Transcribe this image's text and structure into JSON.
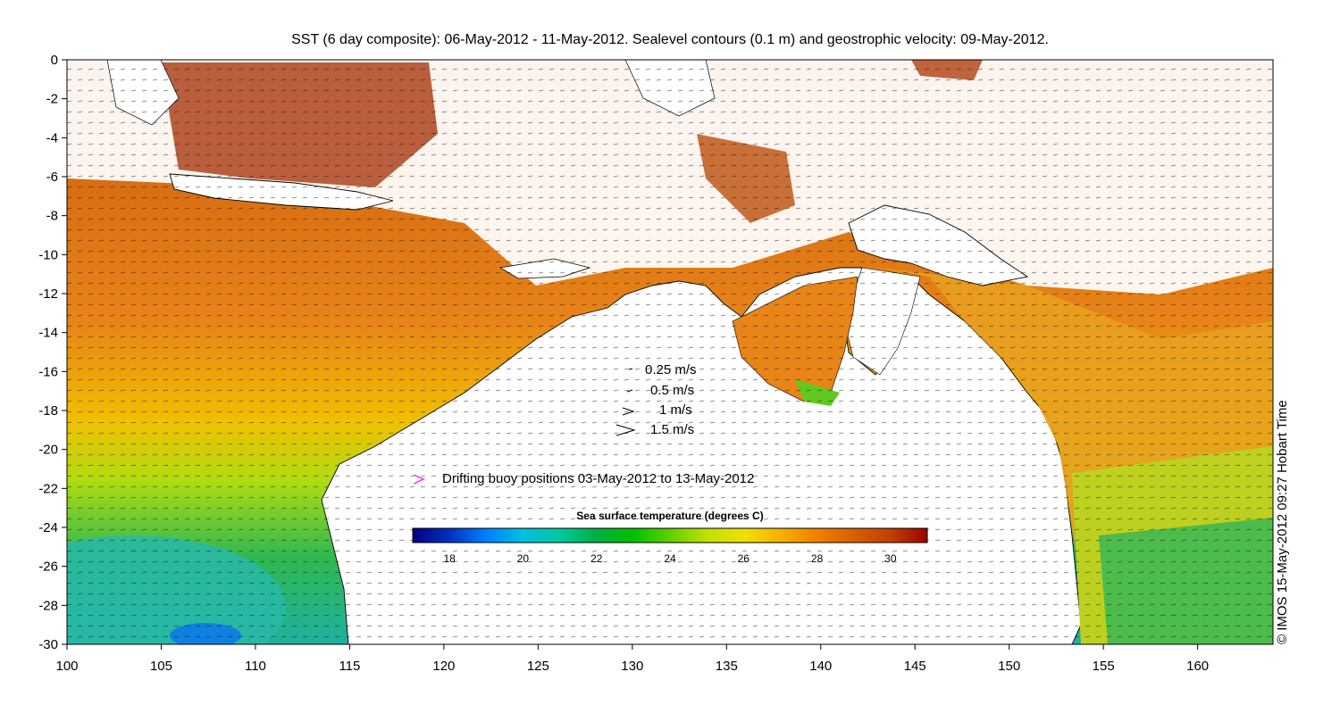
{
  "title": "SST (6 day composite): 06-May-2012 - 11-May-2012. Sealevel contours (0.1 m) and geostrophic velocity: 09-May-2012.",
  "credit": "© IMOS 15-May-2012 09:27 Hobart Time",
  "x_axis": {
    "ticks": [
      "100",
      "105",
      "110",
      "115",
      "120",
      "125",
      "130",
      "135",
      "140",
      "145",
      "150",
      "155",
      "160"
    ],
    "range": [
      100,
      164
    ]
  },
  "y_axis": {
    "ticks": [
      "0",
      "-2",
      "-4",
      "-6",
      "-8",
      "-10",
      "-12",
      "-14",
      "-16",
      "-18",
      "-20",
      "-22",
      "-24",
      "-26",
      "-28",
      "-30"
    ],
    "range": [
      -30,
      0
    ]
  },
  "velocity_legend": [
    {
      "label": "0.25 m/s",
      "speed": 0.25
    },
    {
      "label": "0.5 m/s",
      "speed": 0.5
    },
    {
      "label": "1 m/s",
      "speed": 1
    },
    {
      "label": "1.5 m/s",
      "speed": 1.5
    }
  ],
  "buoy_legend": {
    "label": "Drifting buoy positions 03-May-2012 to 13-May-2012",
    "color": "#ff00ff"
  },
  "colorbar": {
    "title": "Sea surface temperature (degrees C)",
    "range": [
      17,
      31
    ],
    "ticks": [
      "18",
      "20",
      "22",
      "24",
      "26",
      "28",
      "30"
    ],
    "stops": [
      "#000080",
      "#0030c0",
      "#0080ff",
      "#00c0e0",
      "#00c8a0",
      "#00b040",
      "#00c000",
      "#60d000",
      "#c0e000",
      "#f0e000",
      "#f8b000",
      "#f08000",
      "#d86000",
      "#c04000",
      "#a00000"
    ]
  },
  "colors": {
    "land": "#ffffff",
    "warm_sst": "#e07810",
    "cool_sst": "#30c060",
    "coast": "#000000"
  }
}
